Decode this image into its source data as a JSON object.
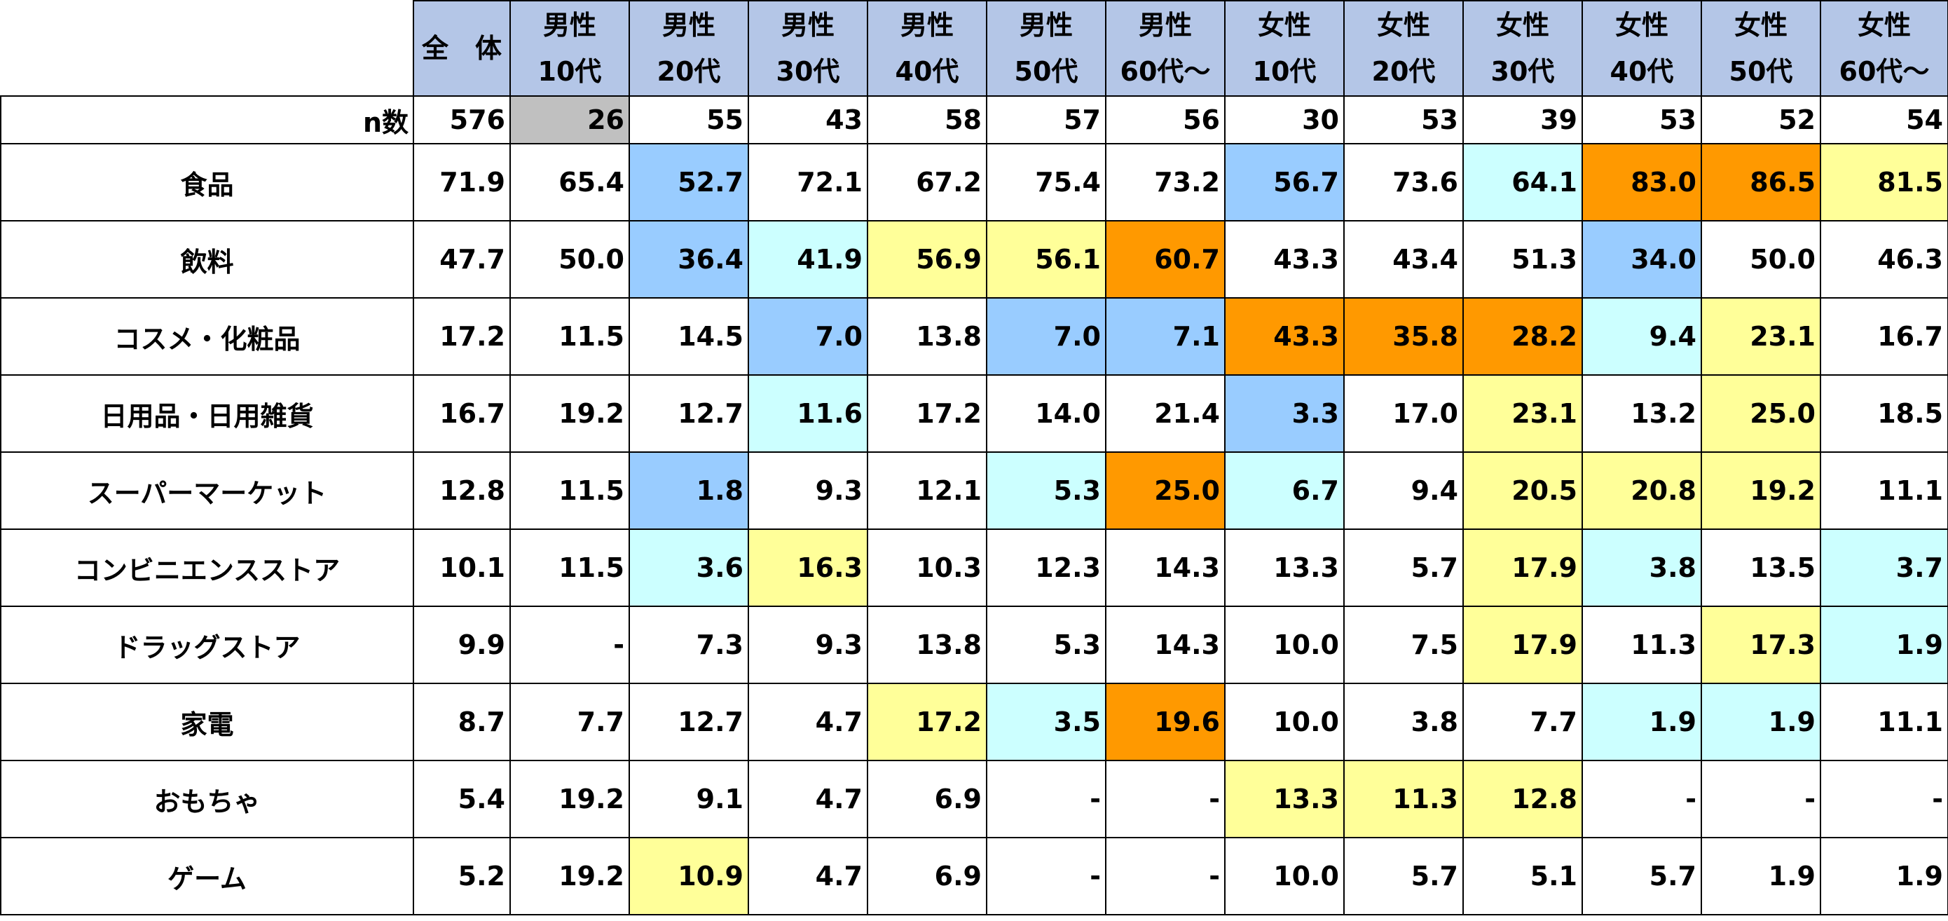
{
  "table": {
    "corner": "",
    "header": [
      [
        "全　体"
      ],
      [
        "男性",
        "10代"
      ],
      [
        "男性",
        "20代"
      ],
      [
        "男性",
        "30代"
      ],
      [
        "男性",
        "40代"
      ],
      [
        "男性",
        "50代"
      ],
      [
        "男性",
        "60代～"
      ],
      [
        "女性",
        "10代"
      ],
      [
        "女性",
        "20代"
      ],
      [
        "女性",
        "30代"
      ],
      [
        "女性",
        "40代"
      ],
      [
        "女性",
        "50代"
      ],
      [
        "女性",
        "60代～"
      ]
    ],
    "header_color": "#b4c6e7",
    "n_row": {
      "label": "n数",
      "values": [
        "576",
        "26",
        "55",
        "43",
        "58",
        "57",
        "56",
        "30",
        "53",
        "39",
        "53",
        "52",
        "54"
      ],
      "fills": [
        null,
        "#c0c0c0",
        null,
        null,
        null,
        null,
        null,
        null,
        null,
        null,
        null,
        null,
        null
      ]
    },
    "rows": [
      {
        "label": "食品",
        "values": [
          "71.9",
          "65.4",
          "52.7",
          "72.1",
          "67.2",
          "75.4",
          "73.2",
          "56.7",
          "73.6",
          "64.1",
          "83.0",
          "86.5",
          "81.5"
        ],
        "fills": [
          null,
          null,
          "#99ccff",
          null,
          null,
          null,
          null,
          "#99ccff",
          null,
          "#ccffff",
          "#ff9900",
          "#ff9900",
          "#ffff99"
        ]
      },
      {
        "label": "飲料",
        "values": [
          "47.7",
          "50.0",
          "36.4",
          "41.9",
          "56.9",
          "56.1",
          "60.7",
          "43.3",
          "43.4",
          "51.3",
          "34.0",
          "50.0",
          "46.3"
        ],
        "fills": [
          null,
          null,
          "#99ccff",
          "#ccffff",
          "#ffff99",
          "#ffff99",
          "#ff9900",
          null,
          null,
          null,
          "#99ccff",
          null,
          null
        ]
      },
      {
        "label": "コスメ・化粧品",
        "values": [
          "17.2",
          "11.5",
          "14.5",
          "7.0",
          "13.8",
          "7.0",
          "7.1",
          "43.3",
          "35.8",
          "28.2",
          "9.4",
          "23.1",
          "16.7"
        ],
        "fills": [
          null,
          null,
          null,
          "#99ccff",
          null,
          "#99ccff",
          "#99ccff",
          "#ff9900",
          "#ff9900",
          "#ff9900",
          "#ccffff",
          "#ffff99",
          null
        ]
      },
      {
        "label": "日用品・日用雑貨",
        "values": [
          "16.7",
          "19.2",
          "12.7",
          "11.6",
          "17.2",
          "14.0",
          "21.4",
          "3.3",
          "17.0",
          "23.1",
          "13.2",
          "25.0",
          "18.5"
        ],
        "fills": [
          null,
          null,
          null,
          "#ccffff",
          null,
          null,
          null,
          "#99ccff",
          null,
          "#ffff99",
          null,
          "#ffff99",
          null
        ]
      },
      {
        "label": "スーパーマーケット",
        "values": [
          "12.8",
          "11.5",
          "1.8",
          "9.3",
          "12.1",
          "5.3",
          "25.0",
          "6.7",
          "9.4",
          "20.5",
          "20.8",
          "19.2",
          "11.1"
        ],
        "fills": [
          null,
          null,
          "#99ccff",
          null,
          null,
          "#ccffff",
          "#ff9900",
          "#ccffff",
          null,
          "#ffff99",
          "#ffff99",
          "#ffff99",
          null
        ]
      },
      {
        "label": "コンビニエンスストア",
        "values": [
          "10.1",
          "11.5",
          "3.6",
          "16.3",
          "10.3",
          "12.3",
          "14.3",
          "13.3",
          "5.7",
          "17.9",
          "3.8",
          "13.5",
          "3.7"
        ],
        "fills": [
          null,
          null,
          "#ccffff",
          "#ffff99",
          null,
          null,
          null,
          null,
          null,
          "#ffff99",
          "#ccffff",
          null,
          "#ccffff"
        ]
      },
      {
        "label": "ドラッグストア",
        "values": [
          "9.9",
          "-",
          "7.3",
          "9.3",
          "13.8",
          "5.3",
          "14.3",
          "10.0",
          "7.5",
          "17.9",
          "11.3",
          "17.3",
          "1.9"
        ],
        "fills": [
          null,
          null,
          null,
          null,
          null,
          null,
          null,
          null,
          null,
          "#ffff99",
          null,
          "#ffff99",
          "#ccffff"
        ]
      },
      {
        "label": "家電",
        "values": [
          "8.7",
          "7.7",
          "12.7",
          "4.7",
          "17.2",
          "3.5",
          "19.6",
          "10.0",
          "3.8",
          "7.7",
          "1.9",
          "1.9",
          "11.1"
        ],
        "fills": [
          null,
          null,
          null,
          null,
          "#ffff99",
          "#ccffff",
          "#ff9900",
          null,
          null,
          null,
          "#ccffff",
          "#ccffff",
          null
        ]
      },
      {
        "label": "おもちゃ",
        "values": [
          "5.4",
          "19.2",
          "9.1",
          "4.7",
          "6.9",
          "-",
          "-",
          "13.3",
          "11.3",
          "12.8",
          "-",
          "-",
          "-"
        ],
        "fills": [
          null,
          null,
          null,
          null,
          null,
          null,
          null,
          "#ffff99",
          "#ffff99",
          "#ffff99",
          null,
          null,
          null
        ]
      },
      {
        "label": "ゲーム",
        "values": [
          "5.2",
          "19.2",
          "10.9",
          "4.7",
          "6.9",
          "-",
          "-",
          "10.0",
          "5.7",
          "5.1",
          "5.7",
          "1.9",
          "1.9"
        ],
        "fills": [
          null,
          null,
          "#ffff99",
          null,
          null,
          null,
          null,
          null,
          null,
          null,
          null,
          null,
          null
        ]
      }
    ]
  }
}
